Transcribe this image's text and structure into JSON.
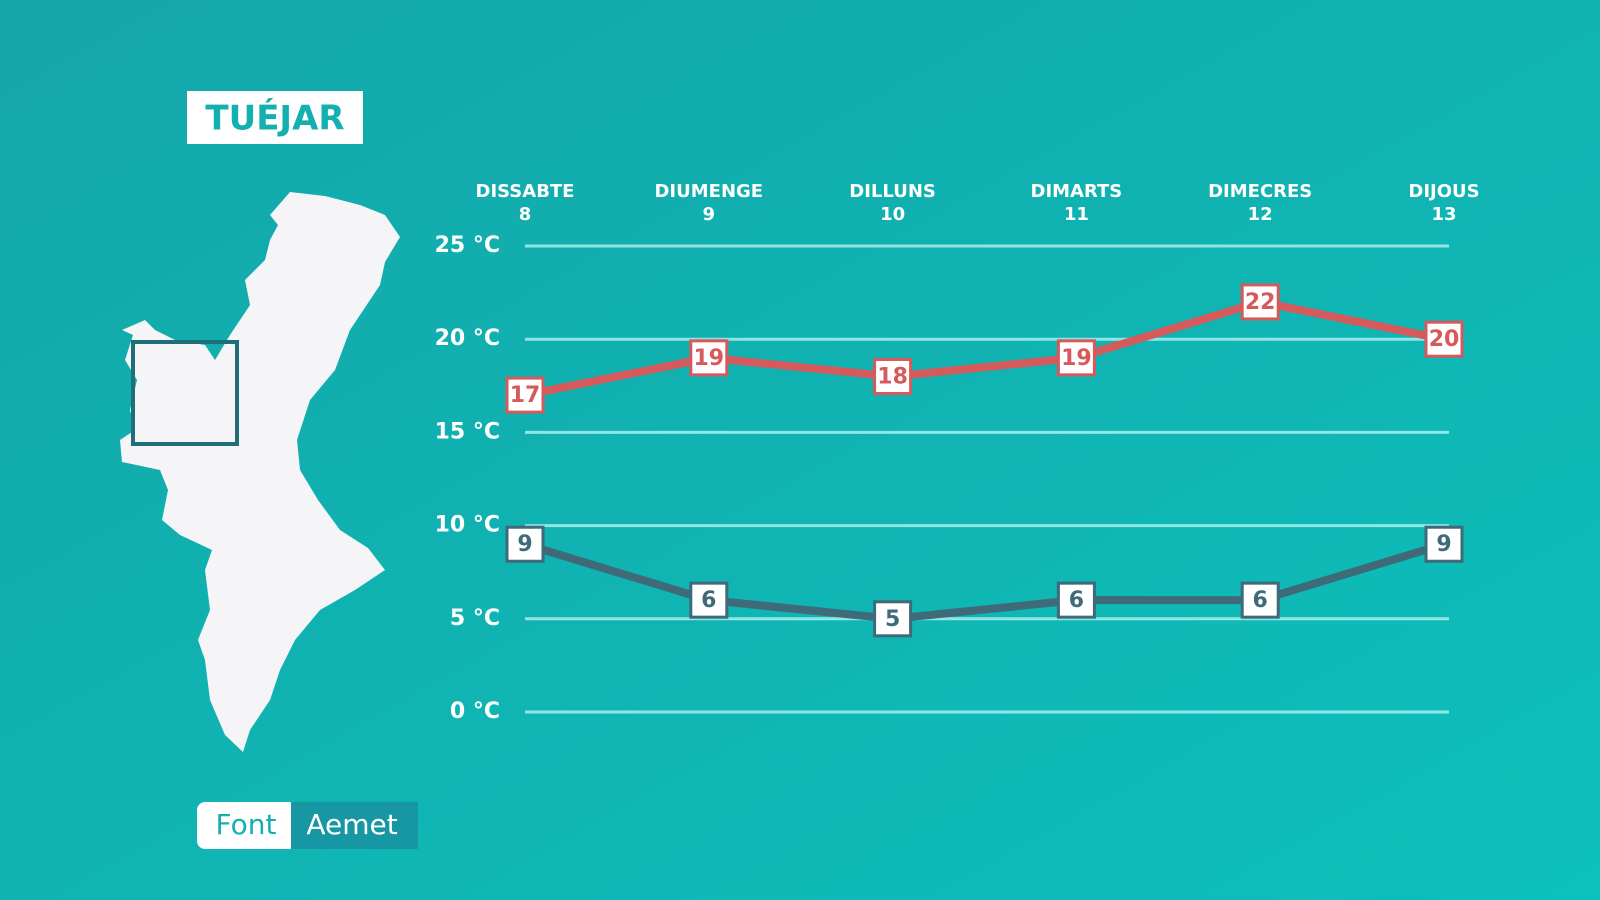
{
  "title": "TUÉJAR",
  "source": {
    "label": "Font",
    "name": "Aemet"
  },
  "chart_data": {
    "type": "line",
    "categories": [
      "DISSABTE",
      "DIUMENGE",
      "DILLUNS",
      "DIMARTS",
      "DIMECRES",
      "DIJOUS"
    ],
    "category_dates": [
      8,
      9,
      10,
      11,
      12,
      13
    ],
    "series": [
      {
        "color": "#d65a5c",
        "values": [
          17,
          19,
          18,
          19,
          22,
          20
        ]
      },
      {
        "color": "#3e6a7a",
        "values": [
          9,
          6,
          5,
          6,
          6,
          9
        ]
      }
    ],
    "ylim": [
      0,
      25
    ],
    "yticks": [
      {
        "value": 0,
        "label": "0 °C"
      },
      {
        "value": 5,
        "label": "5 °C"
      },
      {
        "value": 10,
        "label": "10 °C"
      },
      {
        "value": 15,
        "label": "15 °C"
      },
      {
        "value": 20,
        "label": "20 °C"
      },
      {
        "value": 25,
        "label": "25 °C"
      }
    ],
    "grid": true
  }
}
